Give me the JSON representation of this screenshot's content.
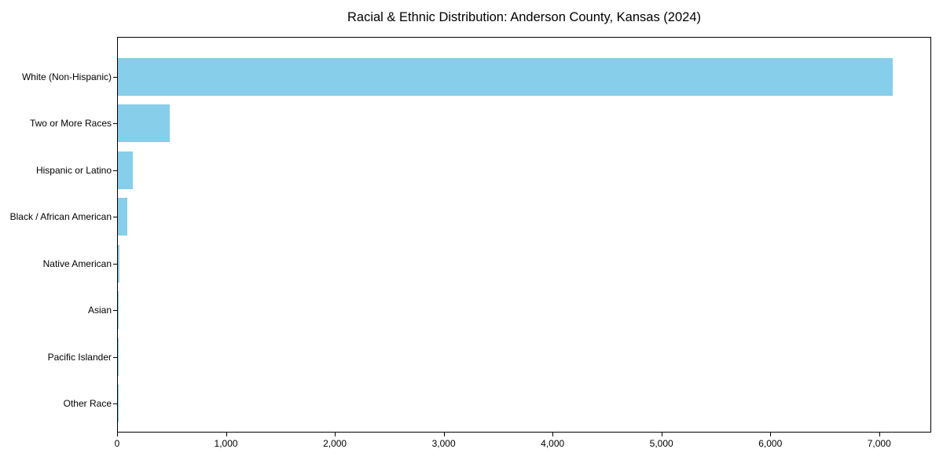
{
  "chart_data": {
    "type": "bar",
    "orientation": "horizontal",
    "title": "Racial & Ethnic Distribution: Anderson County, Kansas (2024)",
    "categories": [
      "White (Non-Hispanic)",
      "Two or More Races",
      "Hispanic or Latino",
      "Black / African American",
      "Native American",
      "Asian",
      "Pacific Islander",
      "Other Race"
    ],
    "values": [
      7120,
      480,
      140,
      90,
      15,
      10,
      4,
      6
    ],
    "bar_color": "#87CEEB",
    "spine_color": "#000000",
    "text_color": "#000000",
    "xlim": [
      0,
      7478
    ],
    "xticks": [
      0,
      1000,
      2000,
      3000,
      4000,
      5000,
      6000,
      7000
    ],
    "xtick_labels": [
      "0",
      "1,000",
      "2,000",
      "3,000",
      "4,000",
      "5,000",
      "6,000",
      "7,000"
    ],
    "xlabel": "",
    "ylabel": "",
    "grid": false,
    "legend": null
  }
}
